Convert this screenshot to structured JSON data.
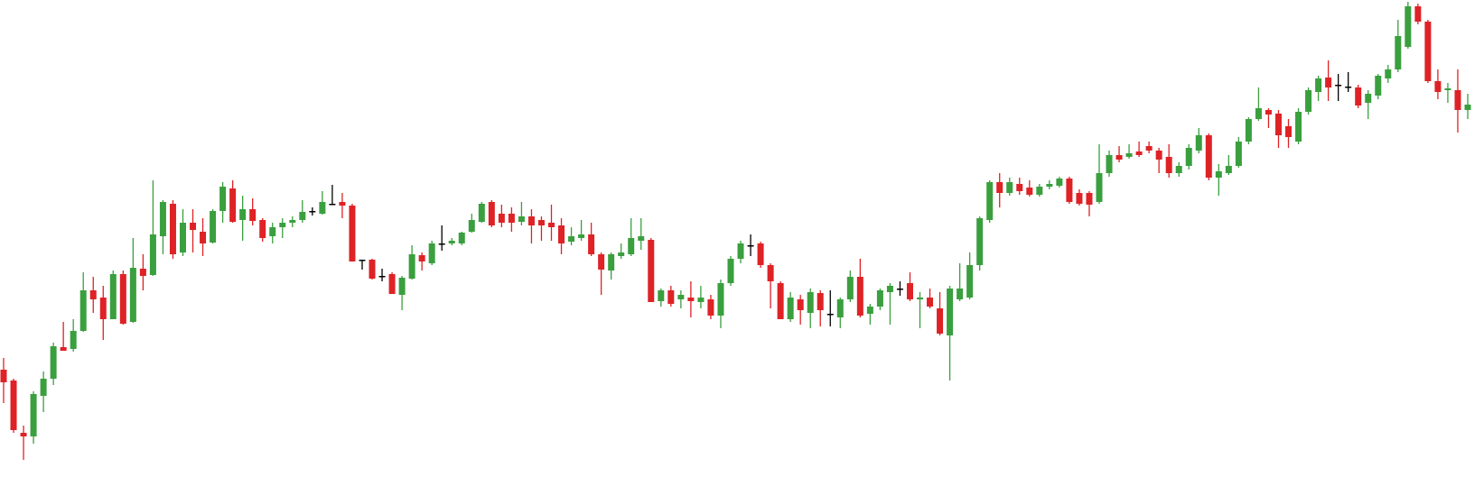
{
  "chart_data": {
    "type": "candlestick",
    "up_color": "#3a9f3e",
    "down_color": "#de2226",
    "flat_color": "#000000",
    "open": [
      132,
      120,
      62,
      58,
      103,
      122,
      157,
      155,
      175,
      220,
      212,
      188,
      238,
      185,
      244,
      237,
      280,
      316,
      262,
      295,
      285,
      273,
      308,
      333,
      298,
      310,
      298,
      280,
      290,
      295,
      298,
      308,
      305,
      316,
      318,
      314,
      254,
      254,
      236,
      238,
      215,
      233,
      259,
      250,
      272,
      272,
      272,
      285,
      296,
      318,
      305,
      305,
      296,
      302,
      298,
      295,
      292,
      274,
      278,
      282,
      260,
      242,
      258,
      260,
      275,
      276,
      208,
      220,
      210,
      212,
      207,
      210,
      192,
      228,
      255,
      270,
      272,
      248,
      228,
      188,
      210,
      195,
      217,
      194,
      190,
      210,
      235,
      194,
      202,
      218,
      222,
      228,
      210,
      212,
      200,
      170,
      210,
      212,
      248,
      298,
      340,
      328,
      338,
      334,
      326,
      335,
      336,
      344,
      328,
      328,
      318,
      350,
      370,
      368,
      374,
      380,
      375,
      368,
      350,
      358,
      375,
      392,
      345,
      350,
      358,
      385,
      410,
      420,
      416,
      402,
      385,
      418,
      440,
      456,
      448,
      446,
      445,
      428,
      436,
      455,
      465,
      490,
      535,
      518,
      452,
      442,
      442,
      420
    ],
    "high": [
      145,
      122,
      70,
      108,
      130,
      162,
      185,
      188,
      240,
      235,
      225,
      242,
      242,
      278,
      260,
      342,
      320,
      320,
      310,
      310,
      300,
      310,
      340,
      342,
      325,
      322,
      300,
      295,
      300,
      302,
      320,
      312,
      330,
      337,
      328,
      316,
      254,
      255,
      244,
      240,
      236,
      270,
      262,
      275,
      292,
      278,
      285,
      305,
      318,
      320,
      315,
      312,
      318,
      310,
      302,
      315,
      300,
      290,
      298,
      295,
      262,
      262,
      272,
      300,
      300,
      278,
      222,
      225,
      220,
      230,
      225,
      215,
      232,
      258,
      275,
      282,
      274,
      250,
      230,
      218,
      215,
      222,
      220,
      220,
      212,
      242,
      255,
      205,
      222,
      228,
      230,
      240,
      218,
      222,
      218,
      225,
      250,
      262,
      302,
      342,
      350,
      345,
      345,
      342,
      338,
      342,
      346,
      346,
      332,
      330,
      382,
      375,
      380,
      382,
      385,
      385,
      378,
      382,
      362,
      382,
      400,
      394,
      360,
      370,
      390,
      412,
      445,
      422,
      420,
      410,
      422,
      445,
      458,
      475,
      460,
      462,
      448,
      442,
      460,
      470,
      520,
      540,
      538,
      520,
      465,
      450,
      465,
      438
    ],
    "low": [
      95,
      62,
      32,
      50,
      85,
      115,
      153,
      152,
      174,
      195,
      165,
      188,
      182,
      184,
      220,
      236,
      260,
      255,
      258,
      262,
      258,
      272,
      295,
      295,
      275,
      292,
      274,
      272,
      278,
      290,
      295,
      303,
      304,
      316,
      300,
      252,
      243,
      232,
      230,
      216,
      198,
      232,
      242,
      248,
      264,
      270,
      270,
      284,
      295,
      290,
      290,
      285,
      292,
      272,
      275,
      275,
      260,
      270,
      275,
      258,
      215,
      232,
      255,
      258,
      265,
      207,
      202,
      202,
      200,
      190,
      200,
      188,
      178,
      225,
      250,
      258,
      245,
      200,
      188,
      185,
      182,
      178,
      180,
      180,
      178,
      207,
      190,
      182,
      198,
      182,
      214,
      208,
      178,
      200,
      170,
      120,
      208,
      210,
      242,
      295,
      312,
      325,
      326,
      324,
      324,
      332,
      334,
      316,
      314,
      302,
      316,
      346,
      362,
      366,
      368,
      372,
      350,
      345,
      346,
      354,
      372,
      342,
      325,
      348,
      356,
      382,
      408,
      400,
      378,
      378,
      382,
      415,
      430,
      430,
      430,
      440,
      422,
      410,
      432,
      450,
      462,
      488,
      515,
      450,
      432,
      428,
      395,
      410
    ],
    "close": [
      118,
      65,
      58,
      105,
      122,
      158,
      153,
      175,
      220,
      210,
      188,
      238,
      183,
      245,
      236,
      282,
      318,
      260,
      295,
      287,
      272,
      308,
      335,
      296,
      310,
      297,
      278,
      290,
      295,
      298,
      307,
      308,
      318,
      316,
      314,
      252,
      254,
      233,
      236,
      216,
      234,
      260,
      252,
      272,
      272,
      275,
      284,
      298,
      316,
      292,
      295,
      295,
      302,
      292,
      292,
      290,
      272,
      280,
      282,
      260,
      243,
      260,
      262,
      278,
      280,
      207,
      220,
      205,
      215,
      208,
      212,
      192,
      228,
      255,
      272,
      270,
      248,
      230,
      188,
      212,
      198,
      218,
      198,
      194,
      210,
      235,
      192,
      202,
      220,
      225,
      222,
      210,
      212,
      202,
      172,
      222,
      222,
      248,
      300,
      340,
      328,
      340,
      330,
      326,
      335,
      338,
      344,
      318,
      316,
      315,
      350,
      370,
      365,
      372,
      370,
      375,
      365,
      350,
      358,
      378,
      392,
      345,
      352,
      358,
      385,
      410,
      422,
      415,
      392,
      390,
      418,
      442,
      455,
      445,
      448,
      446,
      425,
      438,
      458,
      465,
      502,
      535,
      518,
      452,
      440,
      444,
      420,
      426
    ]
  }
}
